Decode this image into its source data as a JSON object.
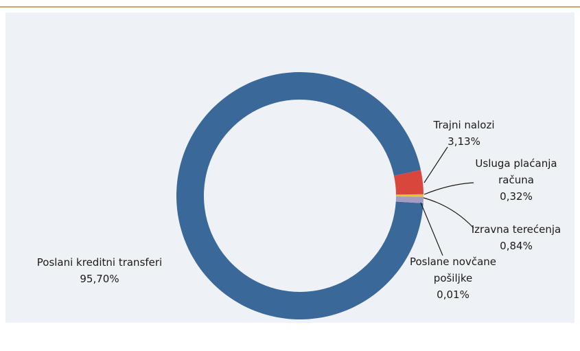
{
  "chart_data": {
    "type": "donut",
    "categories": [
      "Trajni nalozi",
      "Usluga plaćanja računa",
      "Izravna terećenja",
      "Poslane novčane pošiljke",
      "Poslani kreditni transferi"
    ],
    "values": [
      3.13,
      0.32,
      0.84,
      0.01,
      95.7
    ],
    "value_labels": [
      "3,13%",
      "0,32%",
      "0,84%",
      "0,01%",
      "95,70%"
    ],
    "colors": [
      "#d9463c",
      "#f2c12e",
      "#a49cc4",
      "#7f7f9f",
      "#3a6899"
    ]
  }
}
